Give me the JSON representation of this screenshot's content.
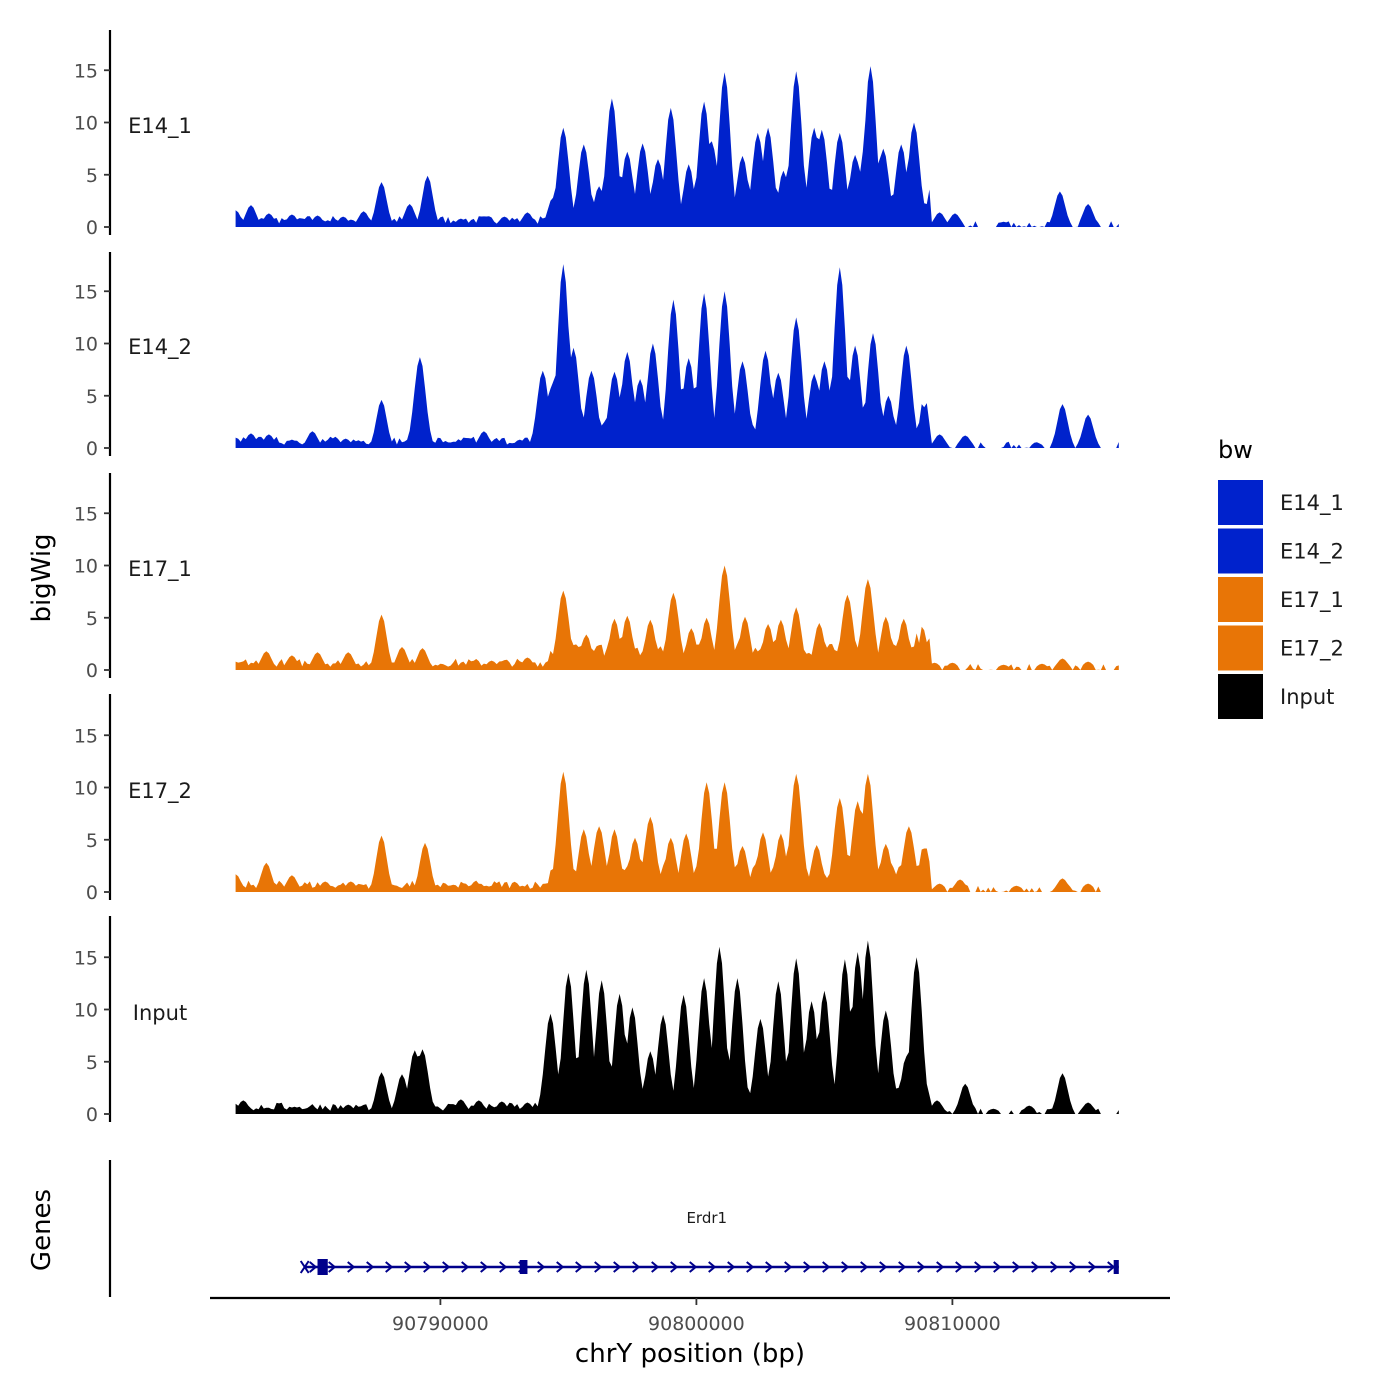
{
  "chart_data": {
    "type": "area",
    "title": "",
    "xlabel": "chrY position (bp)",
    "ylabel": "bigWig",
    "genes_label": "Genes",
    "xlim": [
      90781000,
      90818500
    ],
    "ylim": [
      0,
      18.5
    ],
    "x_ticks": [
      90790000,
      90800000,
      90810000
    ],
    "x_tick_labels": [
      "90790000",
      "90800000",
      "90810000"
    ],
    "y_ticks": [
      0,
      5,
      10,
      15
    ],
    "y_tick_labels": [
      "0",
      "5",
      "10",
      "15"
    ],
    "legend": {
      "title": "bw",
      "position": "right",
      "entries": [
        {
          "label": "E14_1",
          "color": "#0022CC"
        },
        {
          "label": "E14_2",
          "color": "#0022CC"
        },
        {
          "label": "E17_1",
          "color": "#E87506"
        },
        {
          "label": "E17_2",
          "color": "#E87506"
        },
        {
          "label": "Input",
          "color": "#000000"
        }
      ]
    },
    "series": [
      {
        "name": "E14_1",
        "color": "#0022CC",
        "peaks": [
          [
            90782000,
            1.6
          ],
          [
            90782600,
            2.1
          ],
          [
            90783300,
            1.3
          ],
          [
            90784200,
            1.2
          ],
          [
            90785200,
            1.1
          ],
          [
            90786200,
            1.0
          ],
          [
            90787000,
            1.5
          ],
          [
            90787700,
            4.3
          ],
          [
            90788800,
            2.2
          ],
          [
            90789500,
            4.9
          ],
          [
            90790800,
            0.8
          ],
          [
            90792500,
            1.0
          ],
          [
            90793400,
            1.4
          ],
          [
            90794400,
            2.8
          ],
          [
            90794800,
            9.5
          ],
          [
            90795600,
            7.9
          ],
          [
            90796200,
            3.9
          ],
          [
            90796700,
            12.3
          ],
          [
            90797300,
            7.2
          ],
          [
            90797900,
            8.0
          ],
          [
            90798500,
            6.5
          ],
          [
            90799000,
            11.4
          ],
          [
            90799700,
            6.0
          ],
          [
            90800300,
            12.0
          ],
          [
            90800600,
            8.2
          ],
          [
            90801100,
            14.8
          ],
          [
            90801800,
            6.8
          ],
          [
            90802400,
            9.0
          ],
          [
            90802800,
            9.5
          ],
          [
            90803400,
            5.4
          ],
          [
            90803900,
            14.9
          ],
          [
            90804600,
            9.5
          ],
          [
            90804900,
            9.3
          ],
          [
            90805600,
            9.0
          ],
          [
            90806200,
            6.9
          ],
          [
            90806600,
            8.0
          ],
          [
            90806800,
            15.4
          ],
          [
            90807300,
            7.5
          ],
          [
            90808000,
            7.9
          ],
          [
            90808500,
            10.0
          ],
          [
            90809500,
            1.4
          ],
          [
            90810100,
            1.3
          ],
          [
            90812000,
            0.5
          ],
          [
            90814200,
            3.4
          ],
          [
            90815300,
            2.2
          ],
          [
            90816500,
            0.3
          ]
        ]
      },
      {
        "name": "E14_2",
        "color": "#0022CC",
        "peaks": [
          [
            90782000,
            1.0
          ],
          [
            90782600,
            1.4
          ],
          [
            90783300,
            1.3
          ],
          [
            90784200,
            0.8
          ],
          [
            90785000,
            1.6
          ],
          [
            90786300,
            0.9
          ],
          [
            90787700,
            4.6
          ],
          [
            90788900,
            1.3
          ],
          [
            90789200,
            8.7
          ],
          [
            90790500,
            0.6
          ],
          [
            90791700,
            1.6
          ],
          [
            90793100,
            0.8
          ],
          [
            90794000,
            7.4
          ],
          [
            90794400,
            6.3
          ],
          [
            90794800,
            17.6
          ],
          [
            90795200,
            9.6
          ],
          [
            90795900,
            7.4
          ],
          [
            90796800,
            7.3
          ],
          [
            90797300,
            9.2
          ],
          [
            90797800,
            6.6
          ],
          [
            90798300,
            10.0
          ],
          [
            90799100,
            14.2
          ],
          [
            90799700,
            8.6
          ],
          [
            90800300,
            14.8
          ],
          [
            90801100,
            15.0
          ],
          [
            90801800,
            8.3
          ],
          [
            90802700,
            9.3
          ],
          [
            90803200,
            7.2
          ],
          [
            90803900,
            12.5
          ],
          [
            90804600,
            7.1
          ],
          [
            90805000,
            8.3
          ],
          [
            90805600,
            17.3
          ],
          [
            90806200,
            9.8
          ],
          [
            90806900,
            11.0
          ],
          [
            90807500,
            5.0
          ],
          [
            90808200,
            9.8
          ],
          [
            90809500,
            1.3
          ],
          [
            90810500,
            1.2
          ],
          [
            90813300,
            0.5
          ],
          [
            90814300,
            4.2
          ],
          [
            90815300,
            3.2
          ],
          [
            90816500,
            0.3
          ]
        ]
      },
      {
        "name": "E17_1",
        "color": "#E87506",
        "peaks": [
          [
            90782000,
            0.8
          ],
          [
            90783200,
            1.8
          ],
          [
            90784200,
            1.4
          ],
          [
            90785200,
            1.7
          ],
          [
            90786400,
            1.7
          ],
          [
            90787700,
            5.3
          ],
          [
            90788500,
            2.2
          ],
          [
            90789300,
            2.1
          ],
          [
            90791000,
            0.5
          ],
          [
            90792000,
            0.9
          ],
          [
            90793400,
            1.2
          ],
          [
            90794400,
            1.4
          ],
          [
            90794800,
            7.6
          ],
          [
            90795700,
            3.4
          ],
          [
            90796800,
            4.9
          ],
          [
            90797300,
            5.2
          ],
          [
            90798200,
            4.8
          ],
          [
            90799100,
            7.4
          ],
          [
            90799800,
            4.0
          ],
          [
            90800400,
            5.0
          ],
          [
            90801100,
            10.0
          ],
          [
            90801900,
            5.1
          ],
          [
            90802800,
            4.4
          ],
          [
            90803300,
            4.8
          ],
          [
            90803900,
            6.0
          ],
          [
            90804800,
            4.5
          ],
          [
            90805900,
            7.2
          ],
          [
            90806700,
            8.7
          ],
          [
            90807400,
            5.1
          ],
          [
            90808100,
            4.9
          ],
          [
            90809300,
            0.7
          ],
          [
            90810000,
            0.7
          ],
          [
            90812000,
            0.5
          ],
          [
            90813500,
            0.6
          ],
          [
            90814300,
            1.1
          ],
          [
            90815300,
            0.8
          ],
          [
            90816500,
            0.4
          ]
        ]
      },
      {
        "name": "E17_2",
        "color": "#E87506",
        "peaks": [
          [
            90782000,
            1.7
          ],
          [
            90783200,
            2.8
          ],
          [
            90784200,
            1.6
          ],
          [
            90785500,
            1.0
          ],
          [
            90786500,
            1.0
          ],
          [
            90787700,
            5.4
          ],
          [
            90789400,
            4.7
          ],
          [
            90790500,
            0.7
          ],
          [
            90791800,
            0.6
          ],
          [
            90793200,
            0.6
          ],
          [
            90794400,
            1.4
          ],
          [
            90794800,
            11.5
          ],
          [
            90795600,
            6.0
          ],
          [
            90796200,
            6.3
          ],
          [
            90796800,
            6.0
          ],
          [
            90797600,
            5.2
          ],
          [
            90798200,
            7.2
          ],
          [
            90799000,
            5.2
          ],
          [
            90799600,
            5.6
          ],
          [
            90800400,
            10.5
          ],
          [
            90801100,
            10.5
          ],
          [
            90801800,
            4.4
          ],
          [
            90802600,
            5.7
          ],
          [
            90803300,
            5.6
          ],
          [
            90803900,
            11.3
          ],
          [
            90804700,
            4.5
          ],
          [
            90805600,
            9.0
          ],
          [
            90806300,
            8.7
          ],
          [
            90806700,
            11.3
          ],
          [
            90807400,
            4.6
          ],
          [
            90808300,
            6.3
          ],
          [
            90809500,
            0.8
          ],
          [
            90810300,
            1.2
          ],
          [
            90812500,
            0.6
          ],
          [
            90814300,
            1.3
          ],
          [
            90815300,
            0.8
          ],
          [
            90816500,
            0.2
          ]
        ]
      },
      {
        "name": "Input",
        "color": "#000000",
        "peaks": [
          [
            90782300,
            1.3
          ],
          [
            90783200,
            0.6
          ],
          [
            90784300,
            0.7
          ],
          [
            90785300,
            0.5
          ],
          [
            90786400,
            0.9
          ],
          [
            90787700,
            4.0
          ],
          [
            90788500,
            3.8
          ],
          [
            90789000,
            6.1
          ],
          [
            90789300,
            6.2
          ],
          [
            90790800,
            1.4
          ],
          [
            90791500,
            1.3
          ],
          [
            90792400,
            1.2
          ],
          [
            90793400,
            1.1
          ],
          [
            90794300,
            9.6
          ],
          [
            90795000,
            13.5
          ],
          [
            90795700,
            13.8
          ],
          [
            90796300,
            12.8
          ],
          [
            90797000,
            11.5
          ],
          [
            90797500,
            10.2
          ],
          [
            90798200,
            6.0
          ],
          [
            90798700,
            9.5
          ],
          [
            90799500,
            11.4
          ],
          [
            90800300,
            13.0
          ],
          [
            90800900,
            16.0
          ],
          [
            90801600,
            13.0
          ],
          [
            90802500,
            9.1
          ],
          [
            90803200,
            12.7
          ],
          [
            90803900,
            14.9
          ],
          [
            90804500,
            10.8
          ],
          [
            90805000,
            11.8
          ],
          [
            90805800,
            14.8
          ],
          [
            90806300,
            15.5
          ],
          [
            90806700,
            16.6
          ],
          [
            90807400,
            9.9
          ],
          [
            90808200,
            5.5
          ],
          [
            90808600,
            15.0
          ],
          [
            90809400,
            1.3
          ],
          [
            90810500,
            2.9
          ],
          [
            90811600,
            0.5
          ],
          [
            90813000,
            0.8
          ],
          [
            90814300,
            3.9
          ],
          [
            90815300,
            1.1
          ],
          [
            90816500,
            0.2
          ]
        ]
      }
    ],
    "genes": [
      {
        "name": "Erdr1",
        "start": 90784700,
        "end": 90816500,
        "strand": "+",
        "exons": [
          [
            90785200,
            90785600
          ],
          [
            90793100,
            90793400
          ],
          [
            90816300,
            90816500
          ]
        ]
      }
    ]
  }
}
